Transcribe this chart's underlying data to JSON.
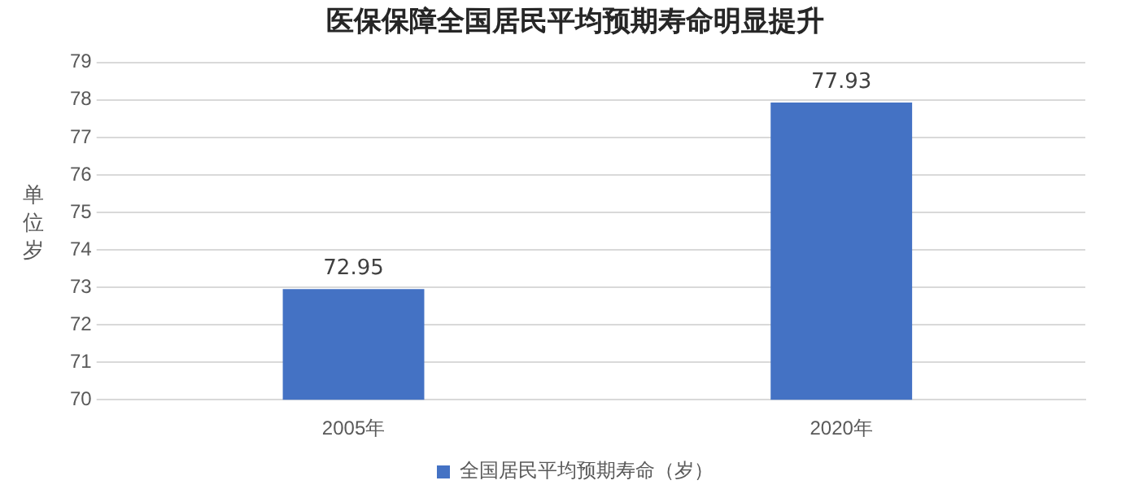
{
  "chart_data": {
    "type": "bar",
    "title": "医保保障全国居民平均预期寿命明显提升",
    "ylabel": "单位岁",
    "categories": [
      "2005年",
      "2020年"
    ],
    "series": [
      {
        "name": "全国居民平均预期寿命（岁）",
        "color": "#4472c4",
        "values": [
          72.95,
          77.93
        ]
      }
    ],
    "ylim": [
      70,
      79
    ],
    "yticks": [
      70,
      71,
      72,
      73,
      74,
      75,
      76,
      77,
      78,
      79
    ],
    "grid": "y",
    "legend": "bottom",
    "data_labels": true
  }
}
